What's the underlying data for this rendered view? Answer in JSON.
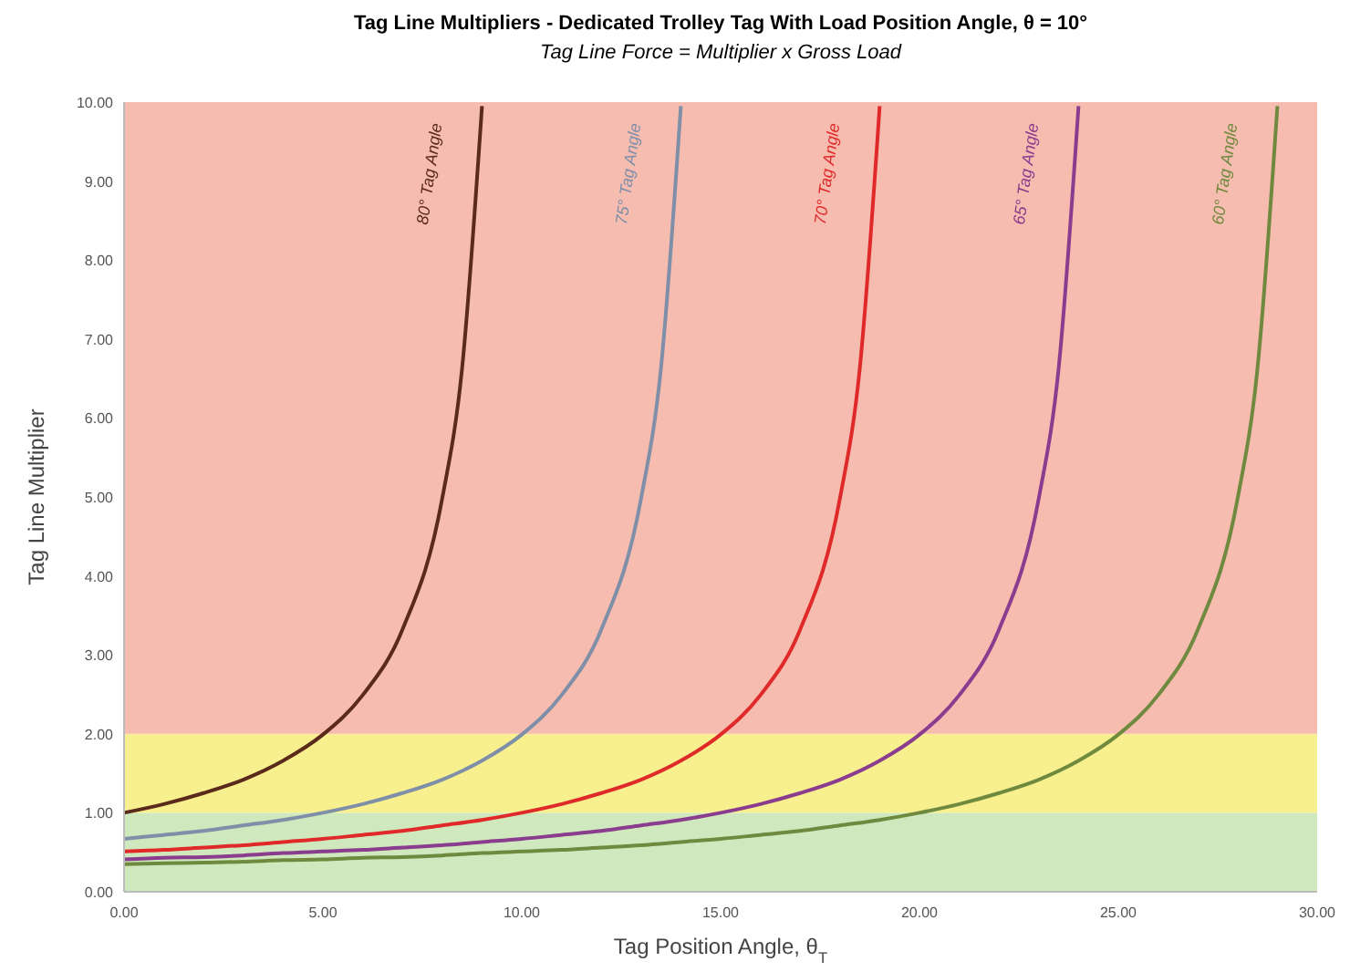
{
  "chart_data": {
    "type": "line",
    "title": "Tag Line Multipliers - Dedicated Trolley Tag With Load Position Angle, θ = 10°",
    "subtitle": "Tag Line Force = Multiplier x Gross Load",
    "xlabel": "Tag Position Angle, θ$_{T}$",
    "ylabel": "Tag Line Multiplier",
    "xlim": [
      0,
      30
    ],
    "xticks": [
      {
        "value": 0,
        "label": "0.00"
      },
      {
        "value": 5,
        "label": "5.00"
      },
      {
        "value": 10,
        "label": "10.00"
      },
      {
        "value": 15,
        "label": "15.00"
      },
      {
        "value": 20,
        "label": "20.00"
      },
      {
        "value": 25,
        "label": "25.00"
      },
      {
        "value": 30,
        "label": "30.00"
      }
    ],
    "ylim": [
      0,
      10
    ],
    "yticks": [
      {
        "value": 0,
        "label": "0.00"
      },
      {
        "value": 1,
        "label": "1.00"
      },
      {
        "value": 2,
        "label": "2.00"
      },
      {
        "value": 3,
        "label": "3.00"
      },
      {
        "value": 4,
        "label": "4.00"
      },
      {
        "value": 5,
        "label": "5.00"
      },
      {
        "value": 6,
        "label": "6.00"
      },
      {
        "value": 7,
        "label": "7.00"
      },
      {
        "value": 8,
        "label": "8.00"
      },
      {
        "value": 9,
        "label": "9.00"
      },
      {
        "value": 10,
        "label": "10.00"
      }
    ],
    "bands": [
      {
        "axis": "y",
        "from": 0,
        "to": 1,
        "color": "#cfe8bd"
      },
      {
        "axis": "y",
        "from": 1,
        "to": 2,
        "color": "#f8f08e"
      },
      {
        "axis": "y",
        "from": 2,
        "to": 10,
        "color": "#f6bcb0"
      }
    ],
    "marker": "none",
    "line_style": "solid",
    "series": [
      {
        "name": "80° Tag Angle",
        "color": "#5a2a1a",
        "x": [
          0,
          1,
          2,
          3,
          4,
          5,
          6,
          7,
          8,
          8.5,
          9
        ],
        "values": [
          1,
          1.11,
          1.25,
          1.42,
          1.66,
          1.99,
          2.49,
          3.32,
          4.98,
          6.63,
          9.95
        ]
      },
      {
        "name": "75° Tag Angle",
        "color": "#7f8fa8",
        "x": [
          0,
          1,
          2,
          3,
          4,
          5,
          6,
          7,
          8,
          9,
          10,
          11,
          12,
          13,
          13.5,
          14
        ],
        "values": [
          0.67,
          0.72,
          0.77,
          0.84,
          0.91,
          1,
          1.11,
          1.25,
          1.42,
          1.66,
          1.99,
          2.49,
          3.32,
          4.98,
          6.63,
          9.95
        ]
      },
      {
        "name": "70° Tag Angle",
        "color": "#e02a2a",
        "x": [
          0,
          1,
          2,
          3,
          4,
          5,
          6,
          7,
          8,
          9,
          10,
          11,
          12,
          13,
          14,
          15,
          16,
          17,
          18,
          18.5,
          19
        ],
        "values": [
          0.51,
          0.53,
          0.56,
          0.59,
          0.63,
          0.67,
          0.72,
          0.77,
          0.84,
          0.91,
          1,
          1.11,
          1.25,
          1.42,
          1.66,
          1.99,
          2.49,
          3.32,
          4.98,
          6.63,
          9.95
        ]
      },
      {
        "name": "65° Tag Angle",
        "color": "#8a3d8e",
        "x": [
          0,
          1,
          2,
          3,
          4,
          5,
          6,
          7,
          8,
          9,
          10,
          11,
          12,
          13,
          14,
          15,
          16,
          17,
          18,
          19,
          20,
          21,
          22,
          23,
          23.5,
          24
        ],
        "values": [
          0.41,
          0.43,
          0.44,
          0.46,
          0.49,
          0.51,
          0.53,
          0.56,
          0.59,
          0.63,
          0.67,
          0.72,
          0.77,
          0.84,
          0.91,
          1,
          1.11,
          1.25,
          1.42,
          1.66,
          1.99,
          2.49,
          3.32,
          4.98,
          6.63,
          9.95
        ]
      },
      {
        "name": "60° Tag Angle",
        "color": "#6f8a3e",
        "x": [
          0,
          1,
          2,
          3,
          4,
          5,
          6,
          7,
          8,
          9,
          10,
          11,
          12,
          13,
          14,
          15,
          16,
          17,
          18,
          19,
          20,
          21,
          22,
          23,
          24,
          25,
          26,
          27,
          28,
          28.5,
          29
        ],
        "values": [
          0.35,
          0.36,
          0.37,
          0.38,
          0.4,
          0.41,
          0.43,
          0.44,
          0.46,
          0.49,
          0.51,
          0.53,
          0.56,
          0.59,
          0.63,
          0.67,
          0.72,
          0.77,
          0.84,
          0.91,
          1,
          1.11,
          1.25,
          1.42,
          1.66,
          1.99,
          2.49,
          3.32,
          4.98,
          6.63,
          9.95
        ]
      }
    ]
  }
}
